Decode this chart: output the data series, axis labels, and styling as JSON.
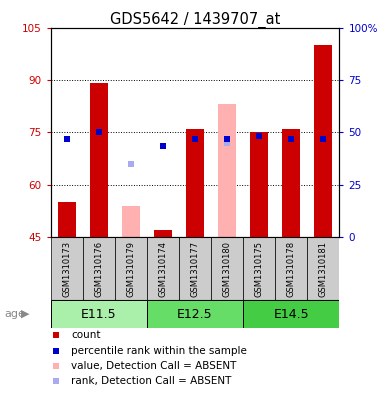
{
  "title": "GDS5642 / 1439707_at",
  "samples": [
    "GSM1310173",
    "GSM1310176",
    "GSM1310179",
    "GSM1310174",
    "GSM1310177",
    "GSM1310180",
    "GSM1310175",
    "GSM1310178",
    "GSM1310181"
  ],
  "age_groups": [
    {
      "label": "E11.5",
      "start": 0,
      "end": 3,
      "color": "#aaf0aa"
    },
    {
      "label": "E12.5",
      "start": 3,
      "end": 6,
      "color": "#66dd66"
    },
    {
      "label": "E14.5",
      "start": 6,
      "end": 9,
      "color": "#44cc44"
    }
  ],
  "ylim": [
    45,
    105
  ],
  "yticks": [
    45,
    60,
    75,
    90,
    105
  ],
  "ytick_labels": [
    "45",
    "60",
    "75",
    "90",
    "105"
  ],
  "right_yticks": [
    0,
    25,
    50,
    75,
    100
  ],
  "right_ytick_labels": [
    "0",
    "25",
    "50",
    "75",
    "100%"
  ],
  "count_values": [
    55,
    89,
    null,
    47,
    76,
    null,
    75,
    76,
    100
  ],
  "rank_values": [
    73,
    75,
    null,
    71,
    73,
    73,
    74,
    73,
    73
  ],
  "absent_value_bars": [
    null,
    null,
    54,
    null,
    null,
    83,
    null,
    null,
    null
  ],
  "absent_rank_dots": [
    null,
    null,
    66,
    null,
    null,
    72,
    null,
    null,
    null
  ],
  "count_color": "#cc0000",
  "rank_color": "#0000cc",
  "absent_value_color": "#ffb0b0",
  "absent_rank_color": "#aaaaee",
  "bar_width": 0.55,
  "left_label_color": "#cc0000",
  "right_label_color": "#0000cc",
  "tick_fontsize": 7.5,
  "title_fontsize": 10.5,
  "sample_fontsize": 6.0,
  "age_fontsize": 9,
  "legend_fontsize": 7.5
}
